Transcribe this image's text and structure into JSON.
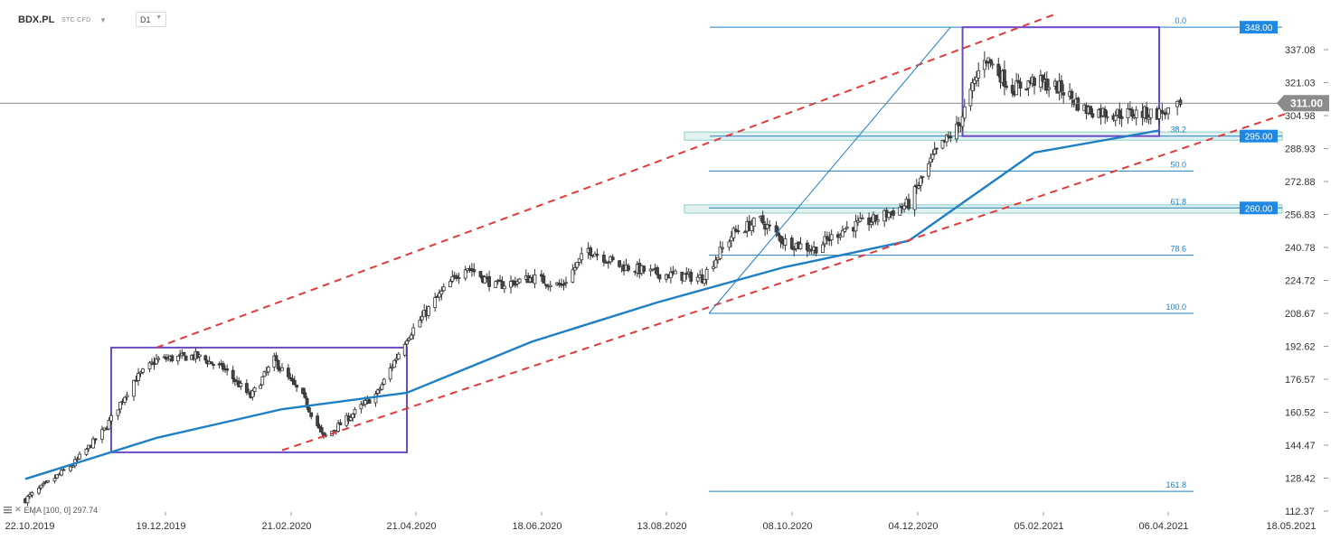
{
  "header": {
    "symbol": "BDX.PL",
    "market": "STC CFD",
    "timeframe": "D1"
  },
  "indicator": {
    "label": "EMA [100, 0] 297.74"
  },
  "colors": {
    "candle_up": "#ffffff",
    "candle_down": "#444444",
    "wick": "#333333",
    "ema": "#1f7fc4",
    "channel": "#e23a3a",
    "fib": "#1f7fc4",
    "box": "#6a4cc7",
    "zone": "#e2f2f0",
    "price_line": "#7a7a7a",
    "badge_blue": "#1e88e5",
    "badge_gray": "#8b8b8b"
  },
  "chart_data": {
    "type": "candlestick",
    "symbol": "BDX.PL",
    "timeframe": "D1",
    "x_axis": {
      "tick_labels": [
        "22.10.2019",
        "19.12.2019",
        "21.02.2020",
        "21.04.2020",
        "18.06.2020",
        "13.08.2020",
        "08.10.2020",
        "04.12.2020",
        "05.02.2021",
        "06.04.2021",
        "18.05.2021"
      ]
    },
    "y_axis": {
      "side": "right",
      "range": [
        112,
        354
      ],
      "tick_labels": [
        "337.08",
        "321.03",
        "304.98",
        "288.93",
        "272.88",
        "256.83",
        "240.78",
        "224.72",
        "208.67",
        "192.62",
        "176.57",
        "160.52",
        "144.47",
        "128.42",
        "112.37"
      ]
    },
    "close_path": [
      [
        "22.10.2019",
        118
      ],
      [
        "12.11.2019",
        135
      ],
      [
        "26.11.2019",
        152
      ],
      [
        "09.12.2019",
        176
      ],
      [
        "19.12.2019",
        186
      ],
      [
        "08.01.2020",
        188
      ],
      [
        "22.01.2020",
        182
      ],
      [
        "05.02.2020",
        168
      ],
      [
        "17.02.2020",
        186
      ],
      [
        "02.03.2020",
        168
      ],
      [
        "12.03.2020",
        148
      ],
      [
        "24.03.2020",
        158
      ],
      [
        "07.04.2020",
        170
      ],
      [
        "21.04.2020",
        197
      ],
      [
        "04.05.2020",
        215
      ],
      [
        "18.05.2020",
        232
      ],
      [
        "01.06.2020",
        222
      ],
      [
        "18.06.2020",
        226
      ],
      [
        "01.07.2020",
        222
      ],
      [
        "13.07.2020",
        240
      ],
      [
        "27.07.2020",
        232
      ],
      [
        "13.08.2020",
        228
      ],
      [
        "02.09.2020",
        226
      ],
      [
        "16.09.2020",
        248
      ],
      [
        "28.09.2020",
        254
      ],
      [
        "08.10.2020",
        244
      ],
      [
        "22.10.2020",
        240
      ],
      [
        "05.11.2020",
        250
      ],
      [
        "18.11.2020",
        254
      ],
      [
        "04.12.2020",
        262
      ],
      [
        "17.12.2020",
        286
      ],
      [
        "29.12.2020",
        300
      ],
      [
        "11.01.2021",
        334
      ],
      [
        "25.01.2021",
        318
      ],
      [
        "05.02.2021",
        322
      ],
      [
        "18.02.2021",
        318
      ],
      [
        "01.03.2021",
        308
      ],
      [
        "15.03.2021",
        306
      ],
      [
        "06.04.2021",
        306
      ],
      [
        "13.04.2021",
        309
      ]
    ],
    "ema": {
      "label": "EMA [100, 0] 297.74",
      "period": 100,
      "last": 297.74,
      "points": [
        [
          "22.10.2019",
          128
        ],
        [
          "19.12.2019",
          148
        ],
        [
          "21.02.2020",
          162
        ],
        [
          "21.04.2020",
          170
        ],
        [
          "18.06.2020",
          195
        ],
        [
          "13.08.2020",
          214
        ],
        [
          "08.10.2020",
          231
        ],
        [
          "04.12.2020",
          244
        ],
        [
          "05.02.2021",
          287
        ],
        [
          "06.04.2021",
          297.74
        ]
      ]
    },
    "channel_lines": [
      {
        "name": "upper",
        "points": [
          [
            "19.12.2019",
            192
          ],
          [
            "14.02.2021",
            354
          ]
        ]
      },
      {
        "name": "lower",
        "points": [
          [
            "21.02.2020",
            142
          ],
          [
            "18.05.2021",
            306
          ]
        ]
      }
    ],
    "trend_line": {
      "points": [
        [
          "13.08.2020",
          208.67
        ],
        [
          "15.12.2020",
          348
        ]
      ]
    },
    "fibonacci": {
      "high": 348,
      "low": 208.67,
      "levels": [
        {
          "label": "0.0",
          "value": 348
        },
        {
          "label": "38.2",
          "value": 295
        },
        {
          "label": "50.0",
          "value": 278
        },
        {
          "label": "61.8",
          "value": 260
        },
        {
          "label": "78.6",
          "value": 237
        },
        {
          "label": "100.0",
          "value": 208.67
        },
        {
          "label": "161.8",
          "value": 122
        }
      ]
    },
    "zones": [
      {
        "from": 293,
        "to": 297
      },
      {
        "from": 257.5,
        "to": 261.5
      }
    ],
    "boxes": [
      {
        "from": "29.11.2019",
        "to": "21.04.2020",
        "low": 141,
        "high": 192
      },
      {
        "from": "31.12.2020",
        "to": "06.04.2021",
        "low": 295,
        "high": 348
      }
    ],
    "price_badges": [
      {
        "label": "348.00",
        "value": 348
      },
      {
        "label": "295.00",
        "value": 295
      },
      {
        "label": "260.00",
        "value": 260
      }
    ],
    "last_price": {
      "label": "311.00",
      "value": 311
    }
  }
}
